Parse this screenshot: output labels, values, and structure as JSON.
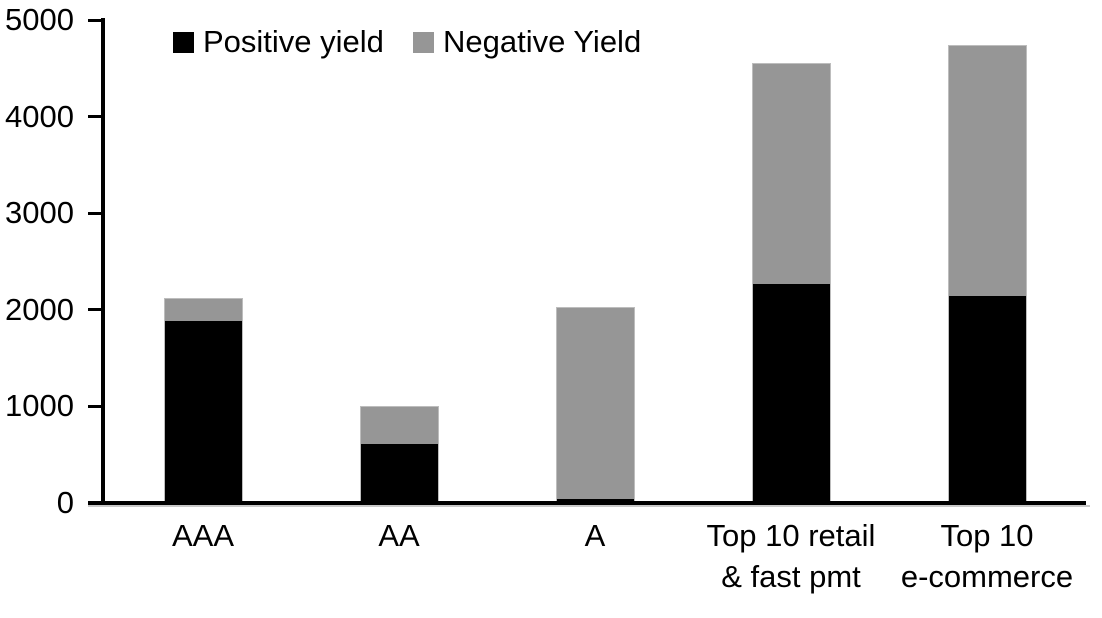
{
  "chart_data": {
    "type": "bar",
    "stacked": true,
    "title": "",
    "xlabel": "",
    "ylabel": "",
    "categories": [
      "AAA",
      "AA",
      "A",
      "Top 10 retail & fast pmt",
      "Top 10 e-commerce"
    ],
    "category_label_lines": [
      [
        "AAA"
      ],
      [
        "AA"
      ],
      [
        "A"
      ],
      [
        "Top 10 retail",
        "& fast pmt"
      ],
      [
        "Top 10",
        "e-commerce"
      ]
    ],
    "series": [
      {
        "name": "Positive yield",
        "color": "#000000",
        "values": [
          1890,
          620,
          50,
          2280,
          2150
        ]
      },
      {
        "name": "Negative Yield",
        "color": "#969696",
        "values": [
          230,
          380,
          1980,
          2270,
          2590
        ]
      }
    ],
    "ylim": [
      0,
      5000
    ],
    "yticks": [
      0,
      1000,
      2000,
      3000,
      4000,
      5000
    ],
    "grid": false,
    "legend_position": "top-left-inside"
  },
  "colors": {
    "positive": "#000000",
    "negative": "#969696",
    "axis": "#000000",
    "bar_border": "#bdbdbd",
    "baseline_shadow": "#c9c9c9",
    "background": "#ffffff"
  }
}
